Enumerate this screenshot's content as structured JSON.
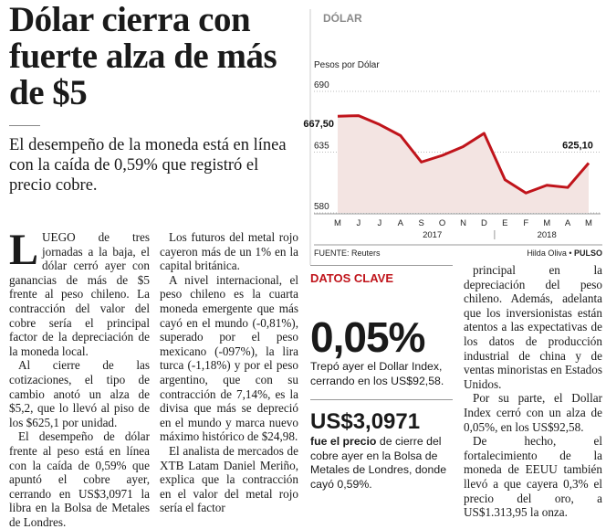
{
  "header": {
    "title": "Dólar cierra con fuerte alza de más de $5",
    "deck": "El desempeño de la moneda está en línea con la caída de 0,59% que registró el precio cobre."
  },
  "columns": [
    [
      "LUEGO de tres jornadas a la baja, el dólar cerró ayer con ganancias de más de $5 frente al peso chileno. La contracción del valor del cobre sería el principal factor de la depreciación de la moneda local.",
      "Al cierre de las cotizaciones, el tipo de cambio anotó un alza de $5,2, que lo llevó al piso de los $625,1 por unidad.",
      "El desempeño de dólar frente al peso está en línea con la caída de 0,59% que apuntó el cobre ayer, cerrando en US$3,0971 la libra en la Bolsa de Metales de Londres."
    ],
    [
      "Los futuros del metal rojo cayeron más de un 1% en la capital británica.",
      "A nivel internacional, el peso chileno es la cuarta moneda emergente que más cayó en el mundo (-0,81%), superado por el peso mexicano (-097%), la lira turca (-1,18%) y por el peso argentino, que con su contracción de 7,14%, es la divisa que más se depreció en el mundo y marca nuevo máximo histórico de $24,98.",
      "El analista de mercados de XTB Latam Daniel Meriño, explica que la contracción en el valor del metal rojo sería el factor"
    ],
    [
      "principal en la depreciación del peso chileno. Además, adelanta que los inversionistas están atentos a las expectativas de los datos de producción industrial de china y de ventas minoristas en Estados Unidos.",
      "Por su parte, el Dollar Index cerró con un alza de 0,05%, en los US$92,58.",
      "De hecho, el fortalecimiento de la moneda de EEUU también llevó a que cayera 0,3% el precio del oro, a US$1.313,95 la onza."
    ]
  ],
  "key_data": {
    "title": "DATOS CLAVE",
    "items": [
      {
        "figure": "0,05%",
        "bold": "",
        "text": "Trepó ayer el Dollar Index, cerrando en los US$92,58."
      },
      {
        "figure": "US$3,0971",
        "bold": "fue el precio",
        "text": "de cierre del cobre ayer en la Bolsa de Metales de Londres, donde cayó 0,59%."
      }
    ]
  },
  "chart_data": {
    "type": "line",
    "title": "DÓLAR",
    "y_label": "Pesos por Dólar",
    "categories": [
      "M",
      "J",
      "J",
      "A",
      "S",
      "O",
      "N",
      "D",
      "E",
      "F",
      "M",
      "A",
      "M"
    ],
    "years": [
      {
        "label": "2017",
        "at": 4
      },
      {
        "label": "2018",
        "at": 10
      }
    ],
    "values": [
      667.5,
      668,
      660,
      650,
      626,
      632,
      640,
      652,
      610,
      598,
      605,
      603,
      625.1
    ],
    "value_labels": [
      "667,50",
      null,
      null,
      null,
      null,
      null,
      null,
      null,
      null,
      null,
      null,
      null,
      "625,10"
    ],
    "color": "#c0141b",
    "ylim": [
      580,
      690
    ],
    "yticks": [
      580,
      635,
      690
    ],
    "grid": true,
    "source": "FUENTE: Reuters",
    "author": "Hilda Oliva",
    "outlet": "PULSO"
  }
}
